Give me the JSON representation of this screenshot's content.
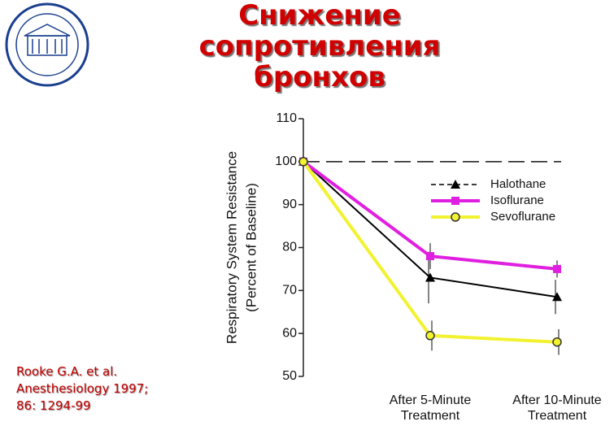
{
  "chart_data": {
    "type": "line",
    "title": "Снижение сопротивления бронхов",
    "ylabel": [
      "Respiratory System Resistance",
      "(Percent of Baseline)"
    ],
    "categories": [
      null,
      "After 5-Minute Treatment",
      "After 10-Minute Treatment"
    ],
    "series": [
      {
        "name": "Halothane",
        "color": "#000000",
        "marker": "triangle",
        "values": [
          100,
          73,
          68.5
        ],
        "errors": [
          0,
          6,
          4
        ]
      },
      {
        "name": "Isoflurane",
        "color": "#e020e0",
        "marker": "square",
        "values": [
          100,
          78,
          75
        ],
        "errors": [
          0,
          3,
          2
        ]
      },
      {
        "name": "Sevoflurane",
        "color": "#f2f230",
        "marker": "circle",
        "values": [
          100,
          59.5,
          58
        ],
        "errors": [
          0,
          3.5,
          3
        ]
      }
    ],
    "reference_line": 100,
    "ylim": [
      50,
      110
    ],
    "yticks": [
      50,
      60,
      70,
      80,
      90,
      100,
      110
    ],
    "legend": "upper right",
    "citation": [
      "Rooke G.A. et al.",
      "Anesthesiology 1997;",
      "86: 1294-99"
    ]
  }
}
